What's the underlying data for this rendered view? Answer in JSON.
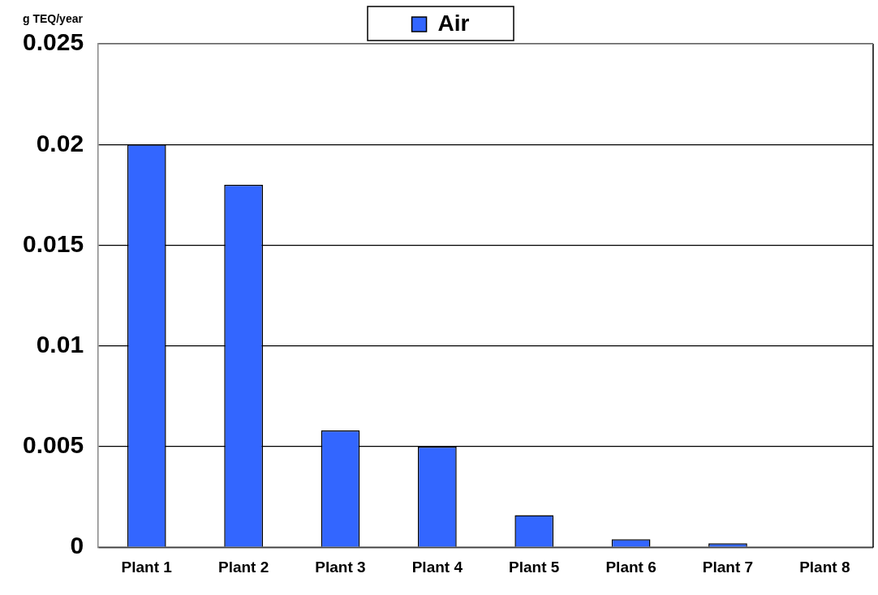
{
  "chart_data": {
    "type": "bar",
    "ylabel": "g TEQ/year",
    "categories": [
      "Plant 1",
      "Plant 2",
      "Plant 3",
      "Plant 4",
      "Plant 5",
      "Plant 6",
      "Plant 7",
      "Plant 8"
    ],
    "series": [
      {
        "name": "Air",
        "color": "#3366ff",
        "values": [
          0.02,
          0.018,
          0.0058,
          0.005,
          0.0016,
          0.0004,
          0.0002,
          0
        ]
      }
    ],
    "ylim": [
      0,
      0.025
    ],
    "yticks": [
      0,
      0.005,
      0.01,
      0.015,
      0.02,
      0.025
    ],
    "grid": "y",
    "legend": "top"
  }
}
